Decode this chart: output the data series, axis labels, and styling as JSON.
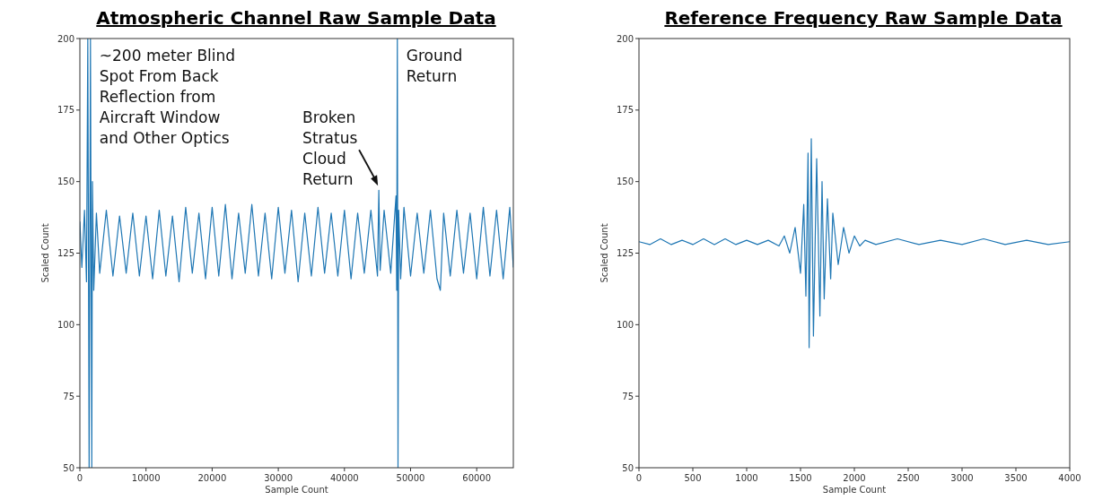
{
  "chart_data": [
    {
      "type": "line",
      "title": "Atmospheric Channel Raw Sample Data",
      "xlabel": "Sample Count",
      "ylabel": "Scaled Count",
      "xlim": [
        0,
        65536
      ],
      "xticks": [
        0,
        10000,
        20000,
        30000,
        40000,
        50000,
        60000
      ],
      "ylim": [
        50,
        200
      ],
      "yticks": [
        50,
        75,
        100,
        125,
        150,
        175,
        200
      ],
      "grid": false,
      "marker": "none",
      "annotations": [
        {
          "text": "~200 meter Blind\nSpot From Back\nReflection from\nAircraft Window\nand Other Optics",
          "x": 1600,
          "y": 200
        },
        {
          "text": "Broken\nStratus\nCloud\nReturn",
          "x": 45200,
          "y": 147
        },
        {
          "text": "Ground\nReturn",
          "x": 48000,
          "y": 200
        }
      ],
      "series": [
        {
          "color": "#1f77b4",
          "x": [
            0,
            300,
            700,
            1000,
            1200,
            1400,
            1600,
            1800,
            1900,
            2100,
            2500,
            3000,
            4000,
            5000,
            6000,
            7000,
            8000,
            9000,
            10000,
            11000,
            12000,
            13000,
            14000,
            15000,
            16000,
            17000,
            18000,
            19000,
            20000,
            21000,
            22000,
            23000,
            24000,
            25000,
            26000,
            27000,
            28000,
            29000,
            30000,
            31000,
            32000,
            33000,
            34000,
            35000,
            36000,
            37000,
            38000,
            39000,
            40000,
            41000,
            42000,
            43000,
            44000,
            45000,
            45200,
            45400,
            46000,
            47000,
            47800,
            47900,
            48000,
            48100,
            48200,
            48500,
            49000,
            50000,
            51000,
            52000,
            53000,
            54000,
            54500,
            55000,
            56000,
            57000,
            58000,
            59000,
            60000,
            61000,
            62000,
            63000,
            64000,
            65000,
            65536
          ],
          "values": [
            136,
            120,
            140,
            115,
            200,
            50,
            200,
            50,
            150,
            112,
            139,
            118,
            140,
            117,
            138,
            118,
            139,
            117,
            138,
            116,
            140,
            117,
            138,
            115,
            141,
            118,
            139,
            116,
            141,
            117,
            142,
            116,
            139,
            118,
            142,
            117,
            139,
            116,
            141,
            118,
            140,
            115,
            139,
            117,
            141,
            118,
            139,
            117,
            140,
            116,
            139,
            118,
            140,
            117,
            147,
            119,
            140,
            118,
            145,
            112,
            200,
            50,
            140,
            116,
            141,
            117,
            139,
            118,
            140,
            116,
            112,
            139,
            117,
            140,
            118,
            139,
            116,
            141,
            117,
            140,
            116,
            141,
            120
          ]
        }
      ]
    },
    {
      "type": "line",
      "title": "Reference Frequency Raw Sample Data",
      "xlabel": "Sample Count",
      "ylabel": "Scaled Count",
      "xlim": [
        0,
        4000
      ],
      "xticks": [
        0,
        500,
        1000,
        1500,
        2000,
        2500,
        3000,
        3500,
        4000
      ],
      "ylim": [
        50,
        200
      ],
      "yticks": [
        50,
        75,
        100,
        125,
        150,
        175,
        200
      ],
      "grid": false,
      "marker": "none",
      "series": [
        {
          "color": "#1f77b4",
          "x": [
            0,
            100,
            200,
            300,
            400,
            500,
            600,
            700,
            800,
            900,
            1000,
            1100,
            1200,
            1300,
            1350,
            1400,
            1450,
            1500,
            1530,
            1550,
            1570,
            1580,
            1600,
            1620,
            1650,
            1680,
            1700,
            1720,
            1750,
            1780,
            1800,
            1850,
            1900,
            1950,
            2000,
            2050,
            2100,
            2200,
            2400,
            2600,
            2800,
            3000,
            3200,
            3400,
            3600,
            3800,
            4000
          ],
          "values": [
            129,
            128,
            130,
            128,
            129.5,
            128,
            130,
            128,
            130,
            128,
            129.5,
            128,
            129.5,
            127.5,
            131,
            125,
            134,
            118,
            142,
            110,
            160,
            92,
            165,
            96,
            158,
            103,
            150,
            109,
            144,
            116,
            139,
            121,
            134,
            125,
            131,
            127.5,
            129.5,
            128,
            130,
            128,
            129.5,
            128,
            130,
            128,
            129.5,
            128,
            129
          ]
        }
      ]
    }
  ]
}
